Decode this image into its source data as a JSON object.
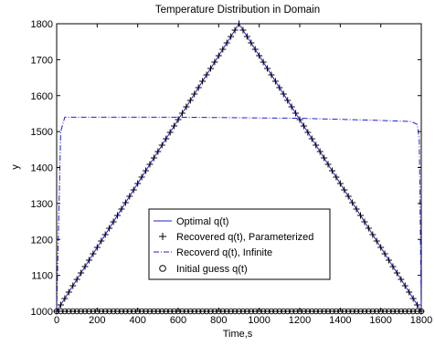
{
  "chart_data": {
    "type": "line",
    "title": "Temperature Distribution in Domain",
    "xlabel": "Time,s",
    "ylabel": "y",
    "xlim": [
      0,
      1800
    ],
    "ylim": [
      1000,
      1800
    ],
    "xticks": [
      0,
      200,
      400,
      600,
      800,
      1000,
      1200,
      1400,
      1600,
      1800
    ],
    "yticks": [
      1000,
      1100,
      1200,
      1300,
      1400,
      1500,
      1600,
      1700,
      1800
    ],
    "grid": false,
    "legend_position": "center-left",
    "series": [
      {
        "name": "Optimal q(t)",
        "style": "solid",
        "color": "#1f1fd0",
        "x": [
          0,
          900,
          1800
        ],
        "y": [
          1000,
          1800,
          1000
        ]
      },
      {
        "name": "Recovered q(t), Parameterized",
        "style": "plus-markers",
        "color": "#000000",
        "x_start": 0,
        "x_end": 1800,
        "x_step": 20,
        "peak_x": 900,
        "base_y": 1000,
        "peak_y": 1800
      },
      {
        "name": "Recoverd q(t), Infinite",
        "style": "dash-dot",
        "color": "#1f1fd0",
        "x": [
          0,
          20,
          40,
          200,
          400,
          600,
          800,
          1000,
          1200,
          1400,
          1600,
          1750,
          1780,
          1790,
          1800
        ],
        "y": [
          1000,
          1500,
          1540,
          1540,
          1540,
          1540,
          1539,
          1538,
          1537,
          1534,
          1531,
          1528,
          1520,
          1480,
          1000
        ]
      },
      {
        "name": "Initial guess q(t)",
        "style": "circle-markers",
        "color": "#000000",
        "x_start": 0,
        "x_end": 1800,
        "x_step": 20,
        "constant_y": 1000
      }
    ]
  }
}
